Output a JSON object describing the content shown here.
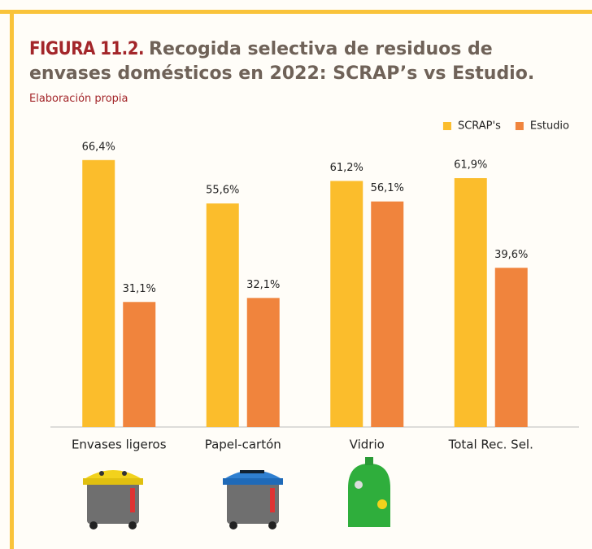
{
  "chart_data": {
    "type": "bar",
    "title_label": "FIGURA 11.2.",
    "title": "Recogida selectiva de residuos de envases domésticos en 2022: SCRAP’s vs Estudio.",
    "subtitle": "Elaboración propia",
    "categories": [
      "Envases ligeros",
      "Papel-cartón",
      "Vidrio",
      "Total Rec. Sel."
    ],
    "series": [
      {
        "name": "SCRAP's",
        "color": "#fbbd2c",
        "values": [
          66.4,
          55.6,
          61.2,
          61.9
        ],
        "value_labels": [
          "66,4%",
          "55,6%",
          "61,2%",
          "61,9%"
        ]
      },
      {
        "name": "Estudio",
        "color": "#f0843d",
        "values": [
          31.1,
          32.1,
          56.1,
          39.6
        ],
        "value_labels": [
          "31,1%",
          "32,1%",
          "56,1%",
          "39,6%"
        ]
      }
    ],
    "ylim": [
      0,
      70
    ],
    "legend": "top-right"
  }
}
